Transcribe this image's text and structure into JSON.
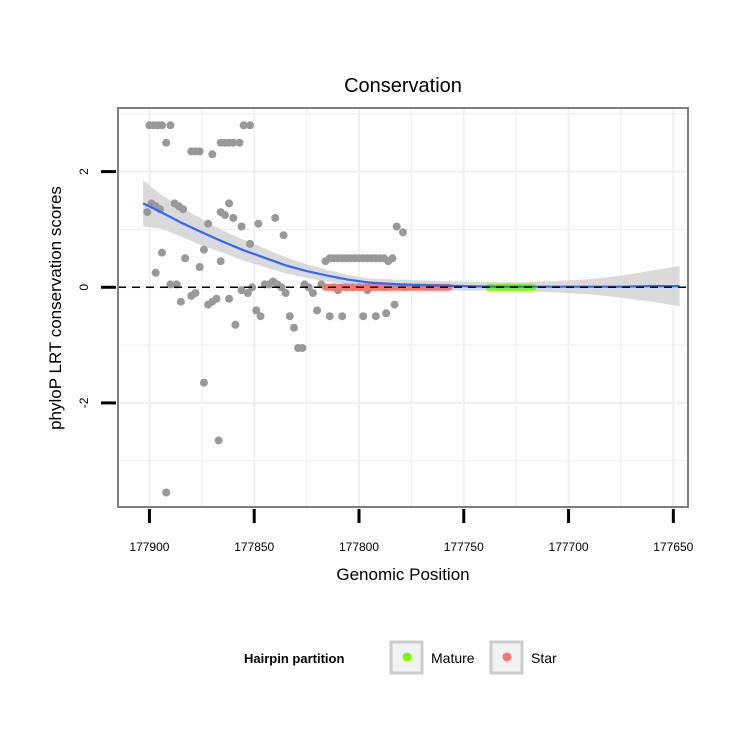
{
  "chart_data": {
    "type": "scatter",
    "title": "Conservation",
    "xlabel": "Genomic Position",
    "ylabel": "phyloP LRT conservation scores",
    "x_reversed": true,
    "xlim": [
      177915,
      177643
    ],
    "ylim": [
      -3.8,
      3.1
    ],
    "x_ticks": [
      177900,
      177850,
      177800,
      177750,
      177700,
      177650
    ],
    "x_tick_labels": [
      "177900",
      "177850",
      "177800",
      "177750",
      "177700",
      "177650"
    ],
    "y_ticks": [
      2,
      0,
      -2
    ],
    "y_tick_labels": [
      "2",
      "0",
      "-2"
    ],
    "grid": true,
    "reference_line": {
      "y": 0,
      "style": "dashed"
    },
    "points": [
      [
        177901,
        1.3
      ],
      [
        177899,
        1.45
      ],
      [
        177897,
        1.4
      ],
      [
        177895,
        1.35
      ],
      [
        177900,
        2.8
      ],
      [
        177898,
        2.8
      ],
      [
        177896,
        2.8
      ],
      [
        177894,
        2.8
      ],
      [
        177892,
        2.5
      ],
      [
        177890,
        2.8
      ],
      [
        177888,
        1.45
      ],
      [
        177886,
        1.4
      ],
      [
        177884,
        1.35
      ],
      [
        177880,
        2.35
      ],
      [
        177878,
        2.35
      ],
      [
        177876,
        2.35
      ],
      [
        177872,
        1.1
      ],
      [
        177870,
        2.3
      ],
      [
        177866,
        1.3
      ],
      [
        177864,
        1.25
      ],
      [
        177862,
        1.45
      ],
      [
        177860,
        1.2
      ],
      [
        177856,
        1.05
      ],
      [
        177852,
        0.75
      ],
      [
        177848,
        1.1
      ],
      [
        177840,
        1.2
      ],
      [
        177836,
        0.9
      ],
      [
        177866,
        2.5
      ],
      [
        177864,
        2.5
      ],
      [
        177862,
        2.5
      ],
      [
        177860,
        2.5
      ],
      [
        177857,
        2.5
      ],
      [
        177855,
        2.8
      ],
      [
        177852,
        2.8
      ],
      [
        177897,
        0.25
      ],
      [
        177894,
        0.6
      ],
      [
        177890,
        0.05
      ],
      [
        177887,
        0.05
      ],
      [
        177885,
        -0.25
      ],
      [
        177883,
        0.5
      ],
      [
        177880,
        -0.15
      ],
      [
        177878,
        -0.1
      ],
      [
        177876,
        0.35
      ],
      [
        177874,
        0.65
      ],
      [
        177872,
        -0.3
      ],
      [
        177870,
        -0.25
      ],
      [
        177868,
        -0.2
      ],
      [
        177866,
        0.45
      ],
      [
        177862,
        -0.2
      ],
      [
        177859,
        -0.65
      ],
      [
        177856,
        -0.05
      ],
      [
        177853,
        -0.1
      ],
      [
        177851,
        0.0
      ],
      [
        177849,
        -0.4
      ],
      [
        177847,
        -0.5
      ],
      [
        177845,
        0.05
      ],
      [
        177843,
        0.05
      ],
      [
        177841,
        0.1
      ],
      [
        177839,
        0.05
      ],
      [
        177837,
        0.0
      ],
      [
        177835,
        -0.1
      ],
      [
        177833,
        -0.5
      ],
      [
        177831,
        -0.7
      ],
      [
        177829,
        -1.05
      ],
      [
        177827,
        -1.05
      ],
      [
        177826,
        0.05
      ],
      [
        177824,
        0.0
      ],
      [
        177822,
        -0.1
      ],
      [
        177820,
        -0.4
      ],
      [
        177818,
        0.05
      ],
      [
        177816,
        0.45
      ],
      [
        177814,
        0.5
      ],
      [
        177812,
        0.5
      ],
      [
        177810,
        0.5
      ],
      [
        177808,
        0.5
      ],
      [
        177806,
        0.5
      ],
      [
        177804,
        0.5
      ],
      [
        177802,
        0.5
      ],
      [
        177800,
        0.5
      ],
      [
        177798,
        0.5
      ],
      [
        177796,
        0.5
      ],
      [
        177794,
        0.5
      ],
      [
        177792,
        0.5
      ],
      [
        177790,
        0.5
      ],
      [
        177788,
        0.5
      ],
      [
        177786,
        0.45
      ],
      [
        177784,
        0.5
      ],
      [
        177782,
        1.05
      ],
      [
        177779,
        0.95
      ],
      [
        177814,
        -0.5
      ],
      [
        177808,
        -0.5
      ],
      [
        177803,
        0.0
      ],
      [
        177798,
        -0.5
      ],
      [
        177792,
        -0.5
      ],
      [
        177787,
        -0.45
      ],
      [
        177783,
        -0.3
      ],
      [
        177778,
        0.0
      ],
      [
        177812,
        0.0
      ],
      [
        177806,
        0.0
      ],
      [
        177800,
        0.0
      ],
      [
        177794,
        0.0
      ],
      [
        177788,
        0.0
      ],
      [
        177810,
        -0.05
      ],
      [
        177796,
        -0.05
      ],
      [
        177874,
        -1.65
      ],
      [
        177867,
        -2.65
      ],
      [
        177892,
        -3.55
      ]
    ],
    "smooth_line": {
      "x": [
        177903,
        177895,
        177885,
        177875,
        177865,
        177855,
        177845,
        177835,
        177825,
        177815,
        177805,
        177795,
        177780,
        177765,
        177750,
        177735,
        177720,
        177705,
        177690,
        177675,
        177660,
        177647
      ],
      "y": [
        1.45,
        1.31,
        1.12,
        0.95,
        0.79,
        0.64,
        0.51,
        0.38,
        0.28,
        0.2,
        0.13,
        0.08,
        0.05,
        0.03,
        0.02,
        0.01,
        0.01,
        0.01,
        0.01,
        0.01,
        0.02,
        0.02
      ]
    },
    "ci_lower": [
      1.05,
      1.02,
      0.88,
      0.72,
      0.6,
      0.46,
      0.35,
      0.24,
      0.16,
      0.1,
      0.05,
      0.02,
      -0.03,
      -0.05,
      -0.06,
      -0.06,
      -0.07,
      -0.09,
      -0.12,
      -0.18,
      -0.25,
      -0.33
    ],
    "ci_upper": [
      1.85,
      1.62,
      1.38,
      1.18,
      0.98,
      0.82,
      0.67,
      0.52,
      0.4,
      0.3,
      0.21,
      0.15,
      0.13,
      0.11,
      0.1,
      0.09,
      0.09,
      0.11,
      0.14,
      0.2,
      0.29,
      0.37
    ],
    "segments": [
      {
        "name": "Star",
        "x_start": 177816,
        "x_end": 177757,
        "y": 0.0,
        "color": "#f8766d"
      },
      {
        "name": "Mature",
        "x_start": 177738,
        "x_end": 177717,
        "y": 0.0,
        "color": "#7cfc00"
      }
    ],
    "legend": {
      "title": "Hairpin partition",
      "position": "bottom",
      "items": [
        {
          "label": "Mature",
          "color": "#7cfc00"
        },
        {
          "label": "Star",
          "color": "#f8766d"
        }
      ]
    },
    "colors": {
      "points": "#999999",
      "smooth": "#3366ff",
      "ribbon": "#d4d4d4",
      "gridline": "#f0f0f0"
    }
  }
}
